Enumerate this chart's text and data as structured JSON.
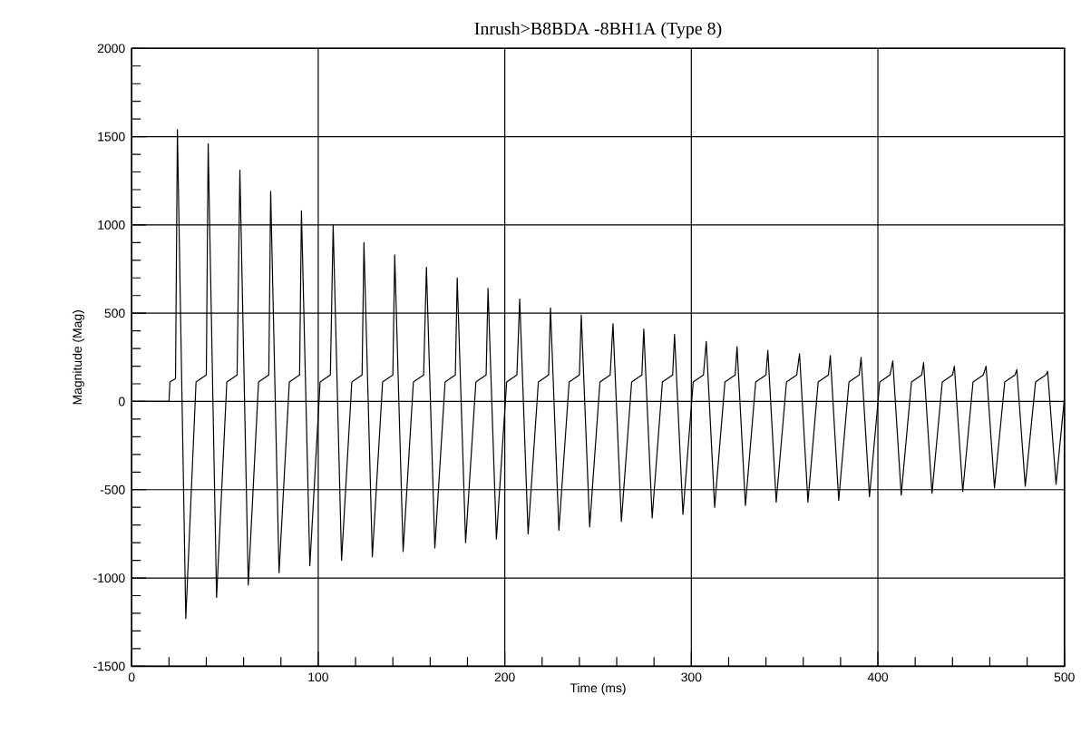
{
  "chart_data": {
    "type": "line",
    "title": "Inrush>B8BDA -8BH1A (Type 8)",
    "xlabel": "Time (ms)",
    "ylabel": "Magnitude (Mag)",
    "xlim": [
      0,
      500
    ],
    "ylim": [
      -1500,
      2000
    ],
    "xticks": [
      0,
      100,
      200,
      300,
      400,
      500,
      {
        "value": 20,
        "label": null
      },
      {
        "value": 40,
        "label": null
      },
      {
        "value": 60,
        "label": null
      },
      {
        "value": 80,
        "label": null
      },
      {
        "value": 120,
        "label": null
      },
      {
        "value": 140,
        "label": null
      },
      {
        "value": 160,
        "label": null
      },
      {
        "value": 180,
        "label": null
      },
      {
        "value": 220,
        "label": null
      },
      {
        "value": 240,
        "label": null
      },
      {
        "value": 260,
        "label": null
      },
      {
        "value": 280,
        "label": null
      },
      {
        "value": 320,
        "label": null
      },
      {
        "value": 340,
        "label": null
      },
      {
        "value": 360,
        "label": null
      },
      {
        "value": 380,
        "label": null
      },
      {
        "value": 420,
        "label": null
      },
      {
        "value": 440,
        "label": null
      },
      {
        "value": 460,
        "label": null
      },
      {
        "value": 480,
        "label": null
      }
    ],
    "yticks": [
      -1500,
      -1000,
      -500,
      0,
      500,
      1000,
      1500,
      2000,
      {
        "value": -1400,
        "label": null
      },
      {
        "value": -1300,
        "label": null
      },
      {
        "value": -1200,
        "label": null
      },
      {
        "value": -1100,
        "label": null
      },
      {
        "value": -900,
        "label": null
      },
      {
        "value": -800,
        "label": null
      },
      {
        "value": -700,
        "label": null
      },
      {
        "value": -600,
        "label": null
      },
      {
        "value": -400,
        "label": null
      },
      {
        "value": -300,
        "label": null
      },
      {
        "value": -200,
        "label": null
      },
      {
        "value": -100,
        "label": null
      },
      {
        "value": 100,
        "label": null
      },
      {
        "value": 200,
        "label": null
      },
      {
        "value": 300,
        "label": null
      },
      {
        "value": 400,
        "label": null
      },
      {
        "value": 600,
        "label": null
      },
      {
        "value": 700,
        "label": null
      },
      {
        "value": 800,
        "label": null
      },
      {
        "value": 900,
        "label": null
      },
      {
        "value": 1100,
        "label": null
      },
      {
        "value": 1200,
        "label": null
      },
      {
        "value": 1300,
        "label": null
      },
      {
        "value": 1400,
        "label": null
      },
      {
        "value": 1600,
        "label": null
      },
      {
        "value": 1700,
        "label": null
      },
      {
        "value": 1800,
        "label": null
      },
      {
        "value": 1900,
        "label": null
      }
    ],
    "grid": true,
    "marker": "none",
    "line_style": "solid",
    "series": [
      {
        "color": "#000000",
        "x": [
          0,
          20,
          20.5,
          23.5,
          24.5,
          29,
          34.5,
          40,
          41,
          45.5,
          51,
          56.5,
          58,
          62.5,
          68,
          73.5,
          74.5,
          79,
          84.5,
          90,
          91,
          95.5,
          101,
          106.5,
          108,
          112.5,
          118,
          123.5,
          124.5,
          129,
          134.5,
          140,
          141,
          145.5,
          151,
          156.5,
          158,
          162.5,
          168,
          173.5,
          174.5,
          179,
          184.5,
          190,
          191,
          195.5,
          201,
          206.5,
          208,
          212.5,
          218,
          223.5,
          224.5,
          229,
          234.5,
          240,
          241,
          245.5,
          251,
          256.5,
          258,
          262.5,
          268,
          273.5,
          274.5,
          279,
          284.5,
          290,
          291,
          295.5,
          301,
          306.5,
          308,
          312.5,
          318,
          323.5,
          324.5,
          329,
          334.5,
          340,
          341,
          345.5,
          351,
          356.5,
          358,
          362.5,
          368,
          373.5,
          374.5,
          379,
          384.5,
          390,
          391,
          395.5,
          401,
          406.5,
          408,
          412.5,
          418,
          423.5,
          424.5,
          429,
          434.5,
          440,
          441,
          445.5,
          451,
          456.5,
          458,
          462.5,
          468,
          473.5,
          474.5,
          479,
          484.5,
          490,
          491,
          495.5,
          500
        ],
        "values": [
          0,
          0,
          110,
          130,
          1540,
          -1230,
          110,
          150,
          1460,
          -1110,
          110,
          150,
          1310,
          -1040,
          110,
          150,
          1190,
          -970,
          110,
          150,
          1080,
          -930,
          110,
          150,
          1000,
          -900,
          110,
          150,
          900,
          -880,
          110,
          150,
          830,
          -850,
          110,
          150,
          760,
          -830,
          110,
          150,
          700,
          -800,
          110,
          150,
          640,
          -780,
          110,
          150,
          580,
          -750,
          110,
          150,
          530,
          -730,
          110,
          150,
          490,
          -710,
          110,
          150,
          440,
          -680,
          110,
          150,
          410,
          -660,
          110,
          150,
          380,
          -640,
          110,
          150,
          340,
          -600,
          110,
          150,
          310,
          -590,
          110,
          150,
          290,
          -570,
          110,
          150,
          270,
          -570,
          110,
          150,
          260,
          -560,
          110,
          150,
          250,
          -540,
          110,
          150,
          230,
          -530,
          110,
          150,
          220,
          -520,
          110,
          150,
          200,
          -510,
          110,
          150,
          200,
          -490,
          110,
          150,
          180,
          -480,
          110,
          150,
          170,
          -470,
          20
        ]
      }
    ]
  }
}
